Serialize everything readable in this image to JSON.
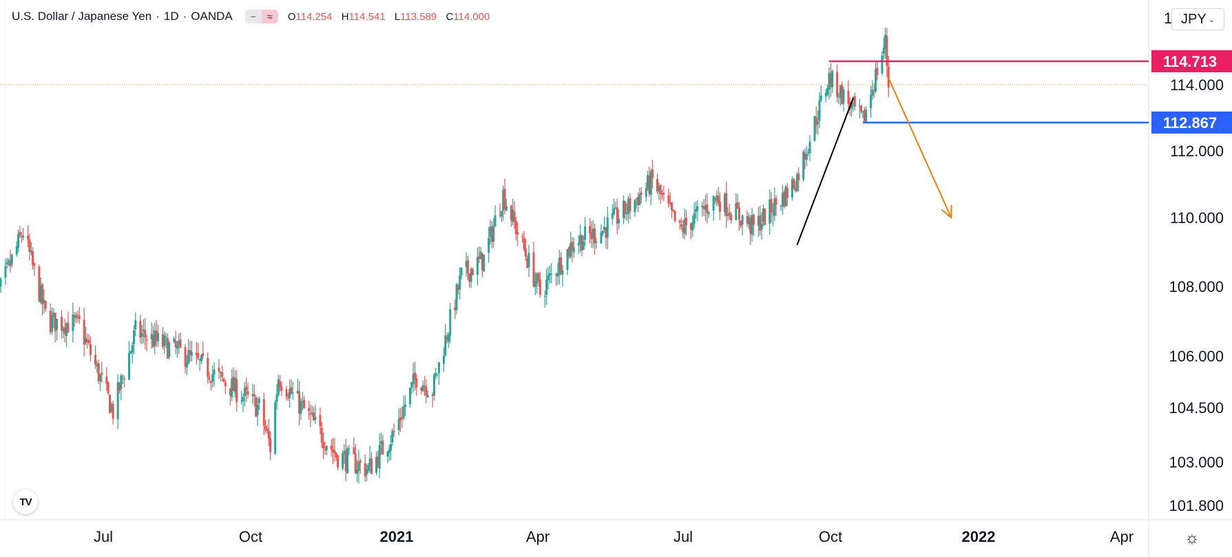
{
  "header": {
    "symbol": "U.S. Dollar / Japanese Yen",
    "interval": "1D",
    "exchange": "OANDA",
    "open_label": "O",
    "open": "114.254",
    "high_label": "H",
    "high": "114.541",
    "low_label": "L",
    "low": "113.589",
    "close_label": "C",
    "close": "114.000",
    "toggle_left_icon": "minus-icon",
    "toggle_right_icon": "wave-icon"
  },
  "toolbar": {
    "currency": "JPY",
    "axis_label_left": "1",
    "axis_label_right": "0"
  },
  "logo_text": "TV",
  "settings_icon": "gear-icon",
  "colors": {
    "up": "#26a69a",
    "down": "#ef5350",
    "resistance": "#e91e63",
    "support": "#2962ff",
    "arrow": "#f57c00",
    "trend": "#000000",
    "grid_border": "#e0e3eb"
  },
  "chart_data": {
    "type": "candlestick",
    "y_ticks": [
      "114.000",
      "112.000",
      "110.000",
      "108.000",
      "106.000",
      "104.500",
      "103.000",
      "101.800"
    ],
    "x_ticks": [
      {
        "label": "Jul",
        "bold": false
      },
      {
        "label": "Oct",
        "bold": false
      },
      {
        "label": "2021",
        "bold": true
      },
      {
        "label": "Apr",
        "bold": false
      },
      {
        "label": "Jul",
        "bold": false
      },
      {
        "label": "Oct",
        "bold": false
      },
      {
        "label": "2022",
        "bold": true
      },
      {
        "label": "Apr",
        "bold": false
      }
    ],
    "price_tags": [
      {
        "label": "114.713",
        "value": 114.713,
        "kind": "resistance"
      },
      {
        "label": "112.867",
        "value": 112.867,
        "kind": "support"
      }
    ],
    "last_price": 114.0,
    "anchor_closes": [
      [
        "2020-05-15",
        107.1
      ],
      [
        "2020-06-05",
        109.6
      ],
      [
        "2020-06-20",
        107.0
      ],
      [
        "2020-07-10",
        106.9
      ],
      [
        "2020-07-31",
        104.4
      ],
      [
        "2020-08-14",
        106.7
      ],
      [
        "2020-09-11",
        106.1
      ],
      [
        "2020-09-28",
        105.6
      ],
      [
        "2020-10-30",
        104.5
      ],
      [
        "2020-11-06",
        103.4
      ],
      [
        "2020-11-11",
        105.4
      ],
      [
        "2020-12-17",
        103.2
      ],
      [
        "2021-01-06",
        102.8
      ],
      [
        "2021-01-22",
        103.8
      ],
      [
        "2021-02-05",
        105.4
      ],
      [
        "2021-02-15",
        105.0
      ],
      [
        "2021-03-05",
        108.3
      ],
      [
        "2021-03-19",
        108.8
      ],
      [
        "2021-03-31",
        110.7
      ],
      [
        "2021-04-23",
        107.8
      ],
      [
        "2021-05-14",
        109.3
      ],
      [
        "2021-05-31",
        109.6
      ],
      [
        "2021-06-17",
        110.3
      ],
      [
        "2021-07-02",
        111.1
      ],
      [
        "2021-07-19",
        109.6
      ],
      [
        "2021-08-11",
        110.6
      ],
      [
        "2021-09-03",
        109.7
      ],
      [
        "2021-09-23",
        110.7
      ],
      [
        "2021-09-30",
        111.2
      ],
      [
        "2021-10-20",
        114.2
      ],
      [
        "2021-11-02",
        113.4
      ],
      [
        "2021-11-10",
        112.9
      ],
      [
        "2021-11-24",
        115.3
      ],
      [
        "2021-11-26",
        114.0
      ]
    ],
    "levels": {
      "resistance": {
        "value": 114.713,
        "from": "2021-10-20"
      },
      "support": {
        "value": 112.867,
        "from": "2021-11-10"
      }
    },
    "drawings": {
      "trend_line": {
        "from": [
          "2021-09-30",
          109.2
        ],
        "to": [
          "2021-11-04",
          113.6
        ]
      },
      "projection_arrow": {
        "from": [
          "2021-11-26",
          114.2
        ],
        "to": [
          "2022-01-04",
          110.0
        ]
      }
    }
  }
}
